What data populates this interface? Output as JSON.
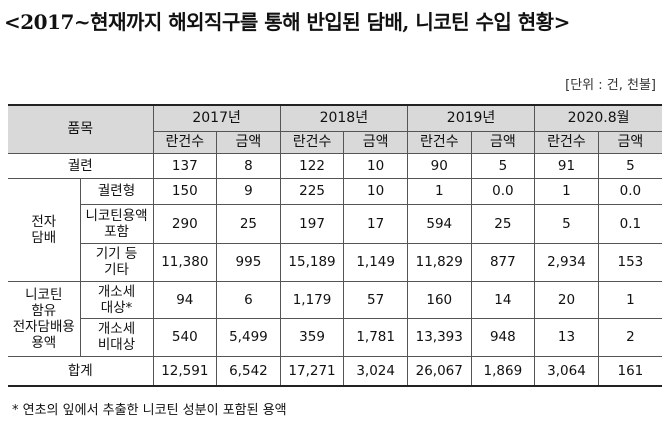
{
  "title": "<2017~현재까지 해외직구를 통해 반입된 담배, 니코틴 수입 현황>",
  "unit": "[단위 : 건, 천불]",
  "header": {
    "item": "품목",
    "years": [
      "2017년",
      "2018년",
      "2019년",
      "2020.8월"
    ],
    "count": "란건수",
    "amount": "금액"
  },
  "rows": {
    "cigarette": {
      "label": "궐련",
      "values": [
        "137",
        "8",
        "122",
        "10",
        "90",
        "5",
        "91",
        "5"
      ]
    },
    "ecig_group": "전자\n담배",
    "ecig_cig": {
      "label": "궐련형",
      "values": [
        "150",
        "9",
        "225",
        "10",
        "1",
        "0.0",
        "1",
        "0.0"
      ]
    },
    "ecig_liquid": {
      "label": "니코틴용액\n포함",
      "values": [
        "290",
        "25",
        "197",
        "17",
        "594",
        "25",
        "5",
        "0.1"
      ]
    },
    "ecig_device": {
      "label": "기기 등\n기타",
      "values": [
        "11,380",
        "995",
        "15,189",
        "1,149",
        "11,829",
        "877",
        "2,934",
        "153"
      ]
    },
    "liquid_group": "니코틴\n함유\n전자담배용\n용액",
    "liquid_taxed": {
      "label": "개소세\n대상*",
      "values": [
        "94",
        "6",
        "1,179",
        "57",
        "160",
        "14",
        "20",
        "1"
      ]
    },
    "liquid_untaxed": {
      "label": "개소세\n비대상",
      "values": [
        "540",
        "5,499",
        "359",
        "1,781",
        "13,393",
        "948",
        "13",
        "2"
      ]
    },
    "total": {
      "label": "합계",
      "values": [
        "12,591",
        "6,542",
        "17,271",
        "3,024",
        "26,067",
        "1,869",
        "3,064",
        "161"
      ]
    }
  },
  "footnote": "* 연초의 잎에서 추출한 니코틴 성분이 포함된 용액"
}
